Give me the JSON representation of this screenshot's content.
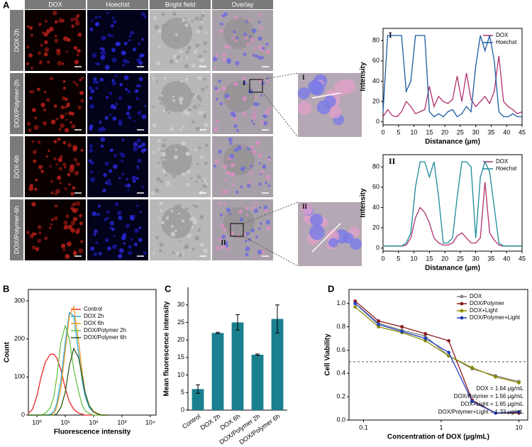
{
  "figure_a": {
    "label": "A",
    "columns": [
      "DOX",
      "Hoechst",
      "Bright field",
      "Overlay"
    ],
    "rows": [
      "DOX-2h",
      "DOX/Polymer-2h",
      "DOX-6h",
      "DOX/Polymer-6h"
    ],
    "regions": [
      "I",
      "II"
    ]
  },
  "chart_data": [
    {
      "type": "line",
      "title": "I",
      "x_label": "Distanance (μm)",
      "y_label": "Intensity",
      "legend": "upper right",
      "x": [
        0,
        1.5,
        3,
        4.5,
        6,
        7.5,
        9,
        10.5,
        12,
        13.5,
        15,
        16.5,
        18,
        19.5,
        21,
        22.5,
        24,
        25.5,
        27,
        28.5,
        30,
        31.5,
        33,
        34.5,
        36,
        37.5,
        39,
        40.5,
        42,
        43.5,
        45
      ],
      "series": [
        {
          "name": "DOX",
          "color": "#b0306e",
          "values": [
            5,
            12,
            6,
            5,
            10,
            20,
            15,
            8,
            10,
            12,
            35,
            15,
            25,
            20,
            18,
            22,
            45,
            20,
            48,
            22,
            15,
            20,
            25,
            18,
            30,
            65,
            20,
            15,
            12,
            8,
            10
          ]
        },
        {
          "name": "Hoechst",
          "color": "#1a5aa0",
          "values": [
            10,
            85,
            85,
            85,
            85,
            30,
            40,
            85,
            85,
            85,
            10,
            5,
            8,
            5,
            10,
            12,
            5,
            8,
            15,
            10,
            55,
            85,
            70,
            85,
            60,
            10,
            5,
            5,
            8,
            5,
            5
          ]
        }
      ],
      "xlim": [
        0,
        45
      ],
      "xticks": [
        0,
        5,
        10,
        15,
        20,
        25,
        30,
        35,
        40,
        45
      ],
      "ylim": [
        -3,
        92
      ],
      "yticks": [
        0,
        20,
        40,
        60,
        80
      ]
    },
    {
      "type": "line",
      "title": "II",
      "x_label": "Distanance (μm)",
      "y_label": "Intensity",
      "legend": "upper right",
      "x": [
        0,
        1.5,
        3,
        4.5,
        6,
        7.5,
        9,
        10.5,
        12,
        13.5,
        15,
        16.5,
        18,
        19.5,
        21,
        22.5,
        24,
        25.5,
        27,
        28.5,
        30,
        31.5,
        33,
        34.5,
        36,
        37.5,
        39,
        40.5,
        42,
        43.5,
        45
      ],
      "series": [
        {
          "name": "DOX",
          "color": "#b0306e",
          "values": [
            2,
            2,
            2,
            2,
            2,
            3,
            10,
            30,
            40,
            35,
            25,
            10,
            5,
            3,
            3,
            5,
            12,
            15,
            10,
            5,
            5,
            10,
            65,
            15,
            8,
            3,
            2,
            2,
            2,
            2,
            2
          ]
        },
        {
          "name": "Hoechst",
          "color": "#1a8a9a",
          "values": [
            2,
            2,
            2,
            2,
            2,
            5,
            15,
            60,
            85,
            85,
            70,
            85,
            50,
            5,
            5,
            10,
            50,
            85,
            85,
            80,
            10,
            70,
            85,
            75,
            40,
            5,
            2,
            2,
            2,
            2,
            2
          ]
        }
      ],
      "xlim": [
        0,
        45
      ],
      "xticks": [
        0,
        5,
        10,
        15,
        20,
        25,
        30,
        35,
        40,
        45
      ],
      "ylim": [
        -3,
        92
      ],
      "yticks": [
        0,
        20,
        40,
        60,
        80
      ]
    },
    {
      "type": "line",
      "label": "B",
      "x_label": "Fluorescence intensity",
      "y_label": "Count",
      "legend": "upper right",
      "xscale": "log",
      "x": [
        0.5,
        0.7,
        1,
        1.4,
        2,
        3,
        4,
        5,
        7,
        10,
        14,
        20,
        30,
        40,
        50,
        70,
        100,
        150,
        200,
        300
      ],
      "series": [
        {
          "name": "Control",
          "color": "#e8262a",
          "values": [
            5,
            15,
            50,
            100,
            140,
            160,
            160,
            150,
            120,
            70,
            35,
            15,
            5,
            2,
            0,
            0,
            0,
            0,
            0,
            0
          ]
        },
        {
          "name": "DOX 2h",
          "color": "#29a8e0",
          "values": [
            0,
            0,
            0,
            0,
            0,
            2,
            10,
            30,
            90,
            190,
            270,
            260,
            160,
            90,
            50,
            20,
            8,
            2,
            0,
            0
          ]
        },
        {
          "name": "DOX 6h",
          "color": "#f39a1e",
          "values": [
            0,
            0,
            0,
            0,
            0,
            0,
            5,
            20,
            70,
            170,
            260,
            285,
            190,
            110,
            60,
            25,
            10,
            3,
            0,
            0
          ]
        },
        {
          "name": "DOX/Polymer 2h",
          "color": "#6cc04a",
          "values": [
            0,
            0,
            0,
            0,
            5,
            20,
            50,
            100,
            190,
            235,
            200,
            120,
            60,
            25,
            12,
            4,
            0,
            0,
            0,
            0
          ]
        },
        {
          "name": "DOX/Polymer 6h",
          "color": "#2d5a16",
          "values": [
            0,
            0,
            0,
            0,
            0,
            0,
            0,
            3,
            20,
            60,
            130,
            175,
            150,
            100,
            60,
            25,
            8,
            2,
            0,
            0
          ]
        }
      ],
      "xlim": [
        0.5,
        16000
      ],
      "xticks": [
        {
          "value": 1,
          "label": "10⁰"
        },
        {
          "value": 10,
          "label": "10¹"
        },
        {
          "value": 100,
          "label": "10²"
        },
        {
          "value": 1000,
          "label": "10³"
        },
        {
          "value": 10000,
          "label": "10⁴"
        }
      ],
      "ylim": [
        0,
        330
      ],
      "yticks": [
        0,
        100,
        200,
        300
      ]
    },
    {
      "type": "bar",
      "label": "C",
      "y_label": "Mean fluorescence intensity",
      "color": "#1a7f8e",
      "categories": [
        "Control",
        "DOX 2h",
        "DOX 6h",
        "DOX/Polymer 2h",
        "DOX/Polymer 6h"
      ],
      "values": [
        6,
        22,
        25,
        15.8,
        26
      ],
      "errors": [
        1.2,
        0.2,
        2.2,
        0.2,
        4
      ],
      "ylim": [
        0,
        35
      ],
      "yticks": [
        0,
        5,
        10,
        15,
        20,
        25,
        30
      ]
    },
    {
      "type": "line",
      "label": "D",
      "x_label": "Concentration of DOX (μg/mL)",
      "y_label": "Cell Viability",
      "legend": "upper right",
      "xscale": "log",
      "markers": true,
      "x": [
        0.078,
        0.156,
        0.3125,
        0.625,
        1.25,
        2.5,
        5,
        10
      ],
      "series": [
        {
          "name": "DOX",
          "color": "#808080",
          "values": [
            1.0,
            0.83,
            0.77,
            0.72,
            0.55,
            0.44,
            0.38,
            0.33
          ]
        },
        {
          "name": "DOX/Polymer",
          "color": "#8b1a1a",
          "values": [
            1.02,
            0.85,
            0.8,
            0.74,
            0.68,
            0.17,
            0.06,
            0.06
          ]
        },
        {
          "name": "DOX+Light",
          "color": "#8b8b00",
          "values": [
            0.97,
            0.8,
            0.75,
            0.68,
            0.55,
            0.45,
            0.37,
            0.32
          ]
        },
        {
          "name": "DOX/Polymer+Light",
          "color": "#2040c0",
          "values": [
            1.0,
            0.82,
            0.76,
            0.7,
            0.58,
            0.16,
            0.06,
            0.07
          ]
        }
      ],
      "reference_line": 0.5,
      "annotations": [
        "DOX = 1.64 μg/mL",
        "DOX/Polymer = 1.56 μg/mL",
        "DOX+Light = 1.65 μg/mL",
        "DOX/Polymer+Light = 1.33 μg/mL"
      ],
      "xlim": [
        0.065,
        13
      ],
      "xticks": [
        0.1,
        1,
        10
      ],
      "ylim": [
        0,
        1.12
      ],
      "yticks": [
        {
          "value": 0,
          "label": "0.0"
        },
        0.2,
        0.4,
        0.6,
        0.8,
        {
          "value": 1,
          "label": "1.0"
        }
      ]
    }
  ]
}
